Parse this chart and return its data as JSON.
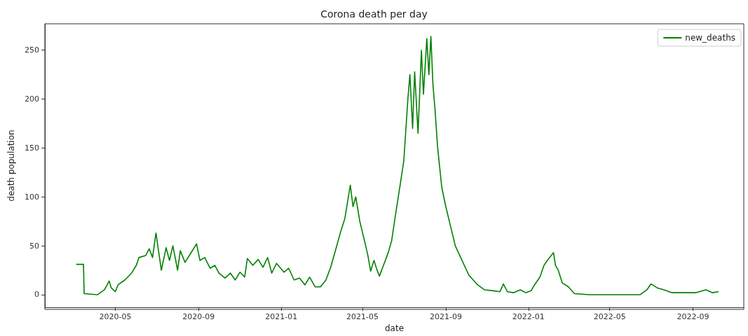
{
  "chart_data": {
    "type": "line",
    "title": "Corona death per day",
    "xlabel": "date",
    "ylabel": "death population",
    "x": [
      "2020-03-05",
      "2020-03-15",
      "2020-03-16",
      "2020-04-05",
      "2020-04-15",
      "2020-04-22",
      "2020-04-25",
      "2020-05-01",
      "2020-05-05",
      "2020-05-15",
      "2020-05-25",
      "2020-06-01",
      "2020-06-05",
      "2020-06-15",
      "2020-06-20",
      "2020-06-25",
      "2020-06-30",
      "2020-07-08",
      "2020-07-15",
      "2020-07-20",
      "2020-07-25",
      "2020-08-01",
      "2020-08-05",
      "2020-08-12",
      "2020-08-20",
      "2020-08-29",
      "2020-09-03",
      "2020-09-10",
      "2020-09-18",
      "2020-09-25",
      "2020-10-01",
      "2020-10-10",
      "2020-10-18",
      "2020-10-25",
      "2020-11-01",
      "2020-11-08",
      "2020-11-12",
      "2020-11-20",
      "2020-11-28",
      "2020-12-05",
      "2020-12-12",
      "2020-12-18",
      "2020-12-25",
      "2021-01-05",
      "2021-01-12",
      "2021-01-20",
      "2021-01-28",
      "2021-02-05",
      "2021-02-12",
      "2021-02-20",
      "2021-02-28",
      "2021-03-08",
      "2021-03-15",
      "2021-03-22",
      "2021-03-30",
      "2021-04-05",
      "2021-04-09",
      "2021-04-13",
      "2021-04-17",
      "2021-04-21",
      "2021-04-27",
      "2021-05-04",
      "2021-05-09",
      "2021-05-13",
      "2021-05-18",
      "2021-05-22",
      "2021-05-26",
      "2021-06-01",
      "2021-06-08",
      "2021-06-13",
      "2021-06-19",
      "2021-06-26",
      "2021-07-01",
      "2021-07-07",
      "2021-07-10",
      "2021-07-14",
      "2021-07-17",
      "2021-07-22",
      "2021-07-27",
      "2021-07-30",
      "2021-08-04",
      "2021-08-07",
      "2021-08-10",
      "2021-08-13",
      "2021-08-16",
      "2021-08-20",
      "2021-08-26",
      "2021-09-01",
      "2021-09-08",
      "2021-09-15",
      "2021-09-25",
      "2021-10-05",
      "2021-10-18",
      "2021-10-28",
      "2021-11-10",
      "2021-11-20",
      "2021-11-25",
      "2021-12-01",
      "2021-12-10",
      "2021-12-20",
      "2021-12-28",
      "2022-01-05",
      "2022-01-10",
      "2022-01-18",
      "2022-01-24",
      "2022-01-30",
      "2022-02-07",
      "2022-02-10",
      "2022-02-14",
      "2022-02-20",
      "2022-03-01",
      "2022-03-10",
      "2022-04-01",
      "2022-05-01",
      "2022-06-15",
      "2022-06-25",
      "2022-07-01",
      "2022-07-10",
      "2022-07-20",
      "2022-08-01",
      "2022-08-20",
      "2022-09-05",
      "2022-09-20",
      "2022-09-30",
      "2022-10-08"
    ],
    "series": [
      {
        "name": "new_deaths",
        "color": "#008000",
        "values": [
          31,
          31,
          1,
          0,
          5,
          14,
          7,
          3,
          10,
          15,
          22,
          30,
          38,
          40,
          47,
          38,
          63,
          25,
          48,
          35,
          50,
          25,
          45,
          33,
          42,
          52,
          35,
          38,
          27,
          30,
          22,
          17,
          22,
          15,
          23,
          18,
          37,
          30,
          36,
          28,
          38,
          22,
          32,
          23,
          27,
          15,
          17,
          10,
          18,
          8,
          8,
          15,
          28,
          45,
          65,
          78,
          95,
          112,
          90,
          100,
          75,
          55,
          40,
          24,
          35,
          26,
          19,
          30,
          43,
          55,
          83,
          114,
          137,
          200,
          225,
          170,
          228,
          165,
          250,
          205,
          262,
          225,
          264,
          215,
          190,
          150,
          110,
          90,
          70,
          50,
          35,
          20,
          10,
          5,
          4,
          3,
          11,
          3,
          2,
          5,
          2,
          4,
          10,
          18,
          30,
          36,
          43,
          30,
          25,
          12,
          8,
          1,
          0,
          0,
          0,
          5,
          11,
          7,
          5,
          2,
          2,
          2,
          5,
          2,
          3
        ]
      }
    ],
    "xlim": [
      "2020-01-18",
      "2022-11-15"
    ],
    "xticks": [
      {
        "value": "2020-05-01",
        "label": "2020-05"
      },
      {
        "value": "2020-09-01",
        "label": "2020-09"
      },
      {
        "value": "2021-01-01",
        "label": "2021-01"
      },
      {
        "value": "2021-05-01",
        "label": "2021-05"
      },
      {
        "value": "2021-09-01",
        "label": "2021-09"
      },
      {
        "value": "2022-01-01",
        "label": "2022-01"
      },
      {
        "value": "2022-05-01",
        "label": "2022-05"
      },
      {
        "value": "2022-09-01",
        "label": "2022-09"
      }
    ],
    "ylim": [
      -13,
      277
    ],
    "yticks": [
      0,
      50,
      100,
      150,
      200,
      250
    ],
    "grid": false,
    "legend": "top right",
    "marker": "none",
    "line_style": "solid"
  }
}
